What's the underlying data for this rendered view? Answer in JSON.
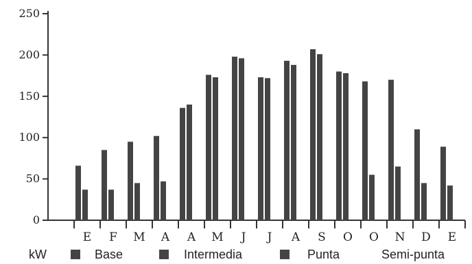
{
  "chart_data": {
    "type": "bar",
    "categories": [
      "E",
      "F",
      "M",
      "A",
      "A",
      "M",
      "J",
      "J",
      "A",
      "S",
      "O",
      "O",
      "N",
      "D",
      "E"
    ],
    "series": [
      {
        "name": "Base",
        "values": [
          66,
          85,
          95,
          102,
          136,
          176,
          198,
          173,
          193,
          207,
          180,
          168,
          170,
          110,
          89
        ]
      },
      {
        "name": "Intermedia",
        "values": [
          37,
          37,
          45,
          47,
          140,
          173,
          196,
          172,
          188,
          201,
          178,
          55,
          65,
          45,
          42
        ]
      },
      {
        "name": "Punta",
        "values": [
          0,
          0,
          0,
          0,
          0,
          0,
          0,
          0,
          0,
          0,
          0,
          0,
          0,
          0,
          0
        ]
      },
      {
        "name": "Semi-punta",
        "values": [
          0,
          0,
          0,
          0,
          0,
          0,
          0,
          0,
          0,
          0,
          0,
          0,
          0,
          0,
          0
        ]
      }
    ],
    "yticks": [
      "0",
      "50",
      "100",
      "150",
      "200",
      "250"
    ],
    "ylim": [
      0,
      250
    ],
    "legend_unit": "kW",
    "legend_placement": "bottom",
    "grid": false,
    "bar_color": "#444444"
  }
}
